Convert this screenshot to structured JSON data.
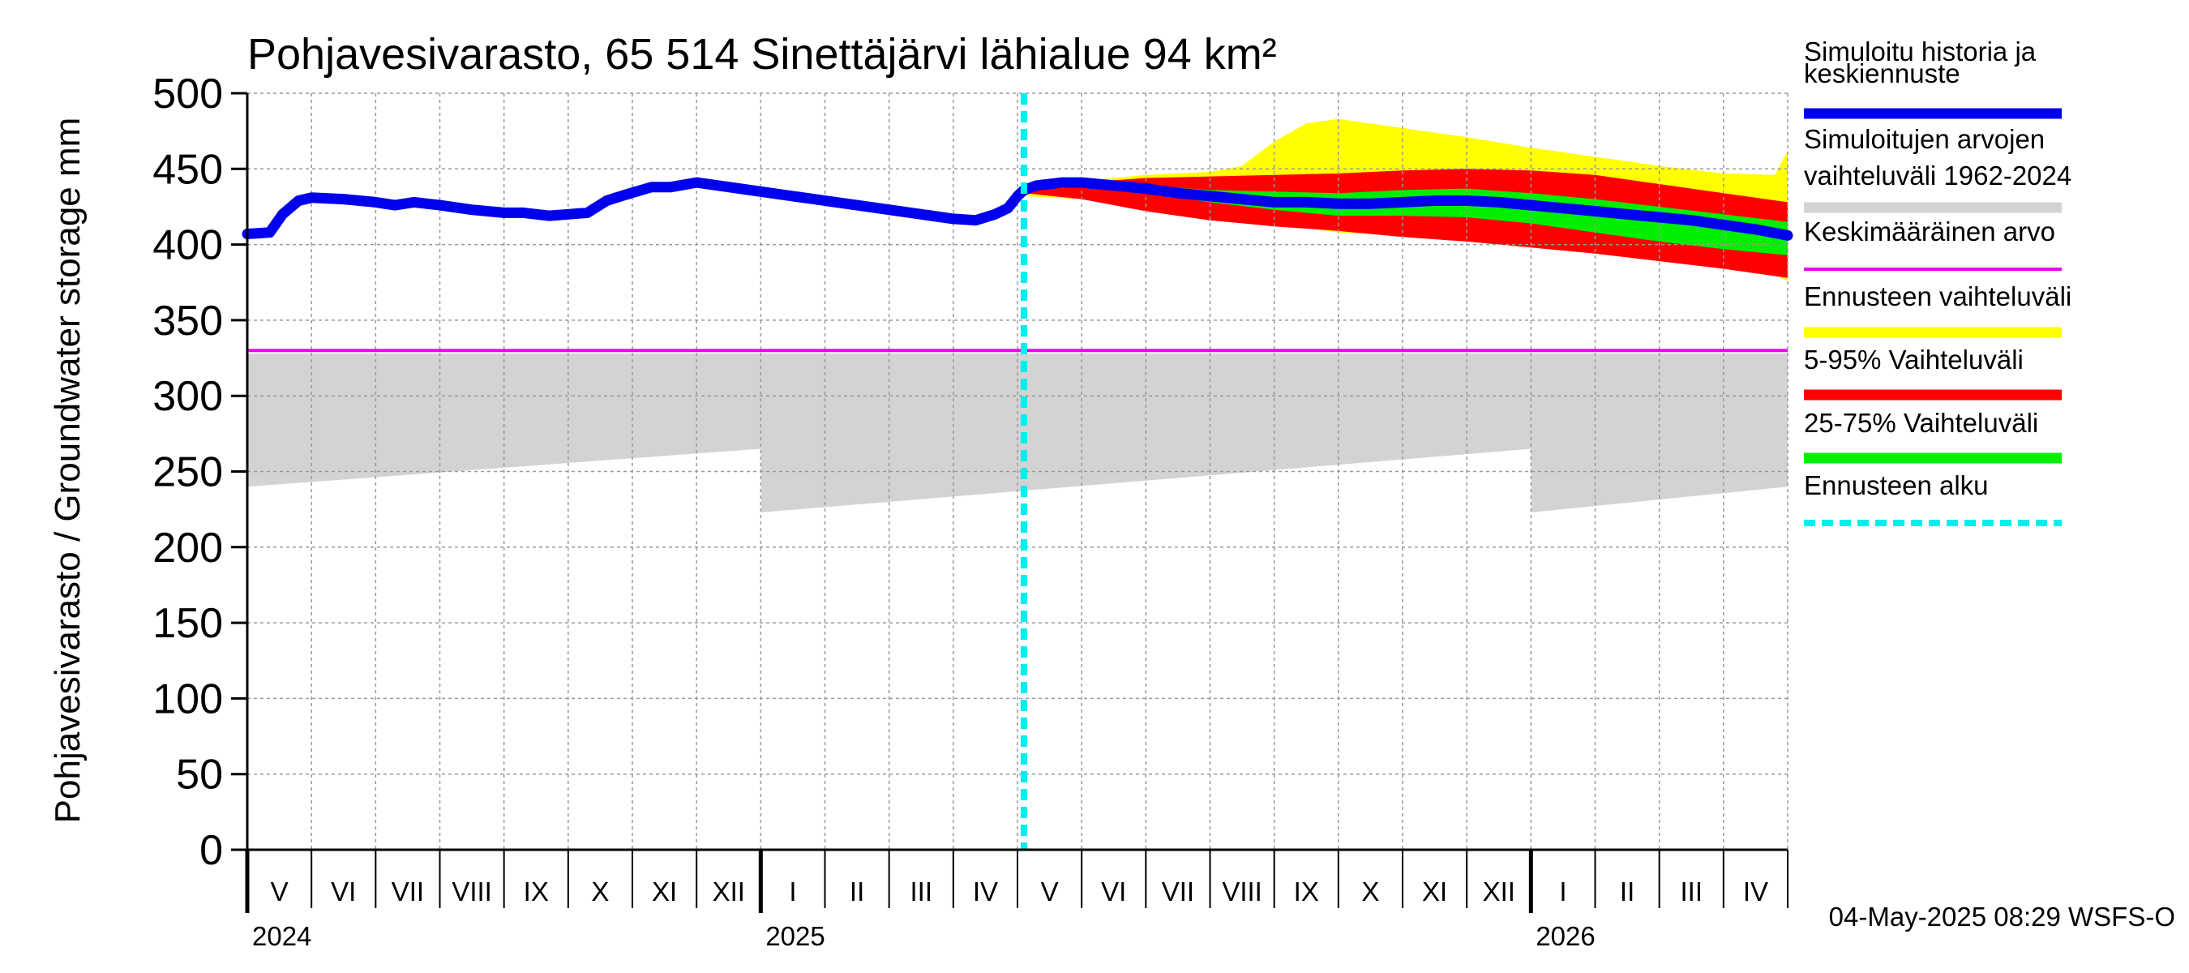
{
  "chart_data": {
    "type": "area",
    "title": "Pohjavesivarasto, 65 514 Sinettäjärvi lähialue 94 km²",
    "ylabel": "Pohjavesivarasto / Groundwater storage   mm",
    "ylim": [
      0,
      500
    ],
    "yticks": [
      0,
      50,
      100,
      150,
      200,
      250,
      300,
      350,
      400,
      450,
      500
    ],
    "x_range_months": [
      0,
      24
    ],
    "x_start": "2024-05-01",
    "forecast_start_month": 12.1,
    "mean_value": 330,
    "month_labels": [
      "V",
      "VI",
      "VII",
      "VIII",
      "IX",
      "X",
      "XI",
      "XII",
      "I",
      "II",
      "III",
      "IV",
      "V",
      "VI",
      "VII",
      "VIII",
      "IX",
      "X",
      "XI",
      "XII",
      "I",
      "II",
      "III",
      "IV"
    ],
    "year_labels": [
      {
        "label": "2024",
        "month": 0
      },
      {
        "label": "2025",
        "month": 8
      },
      {
        "label": "2026",
        "month": 20
      }
    ],
    "series": [
      {
        "name": "Simuloitu historia ja keskiennuste",
        "color": "#0000ee",
        "x": [
          0,
          0.35,
          0.55,
          0.8,
          1,
          1.5,
          2,
          2.3,
          2.6,
          3,
          3.5,
          4,
          4.3,
          4.7,
          5,
          5.3,
          5.6,
          5.9,
          6.3,
          6.6,
          7,
          7.5,
          8,
          8.5,
          9,
          9.5,
          10,
          10.5,
          11,
          11.35,
          11.65,
          11.85,
          12,
          12.1,
          12.3,
          12.7,
          13,
          13.5,
          14,
          14.5,
          15,
          15.5,
          16,
          16.5,
          17,
          17.5,
          18,
          18.5,
          19,
          19.5,
          20,
          20.5,
          21,
          21.5,
          22,
          22.5,
          23,
          23.5,
          24
        ],
        "values": [
          407,
          408,
          420,
          429,
          431,
          430,
          428,
          426,
          428,
          426,
          423,
          421,
          421,
          419,
          420,
          421,
          429,
          433,
          438,
          438,
          441,
          438,
          435,
          432,
          429,
          426,
          423,
          420,
          417,
          416,
          420,
          424,
          432,
          436,
          439,
          441,
          441,
          439,
          437,
          434,
          432,
          430,
          428,
          428,
          427,
          427,
          428,
          429,
          429,
          428,
          426,
          424,
          422,
          420,
          418,
          416,
          413,
          410,
          406
        ]
      }
    ],
    "bands": {
      "historical": {
        "name": "Simuloitujen arvojen vaihteluväli 1962-2024",
        "color": "#d3d3d3",
        "x": [
          0,
          8,
          8.01,
          20,
          20.01,
          24
        ],
        "upper": [
          328,
          328,
          328,
          328,
          328,
          328
        ],
        "lower": [
          240,
          265,
          223,
          265,
          223,
          240
        ]
      },
      "forecast_range": {
        "name": "Ennusteen vaihteluväli",
        "color": "#ffff00",
        "x": [
          12.1,
          13,
          14,
          15,
          15.5,
          16,
          16.5,
          17,
          18,
          19,
          20,
          21,
          22,
          23,
          23.8,
          24
        ],
        "upper": [
          438,
          442,
          446,
          448,
          452,
          468,
          480,
          483,
          477,
          471,
          464,
          458,
          452,
          447,
          446,
          462
        ],
        "lower": [
          432,
          430,
          425,
          419,
          416,
          413,
          411,
          408,
          406,
          403,
          400,
          396,
          390,
          385,
          380,
          376
        ]
      },
      "p5_95": {
        "name": "5-95% Vaihteluväli",
        "color": "#ff0000",
        "x": [
          12.1,
          13,
          14,
          15,
          16,
          17,
          18,
          19,
          20,
          21,
          22,
          23,
          24
        ],
        "upper": [
          437,
          441,
          444,
          445,
          446,
          447,
          449,
          450,
          449,
          446,
          440,
          434,
          428
        ],
        "lower": [
          434,
          430,
          422,
          416,
          412,
          409,
          405,
          402,
          398,
          394,
          389,
          384,
          378
        ]
      },
      "p25_75": {
        "name": "25-75% Vaihteluväli",
        "color": "#00ee00",
        "x": [
          12.1,
          13,
          14,
          15,
          16,
          17,
          18,
          19,
          20,
          21,
          22,
          23,
          24
        ],
        "upper": [
          438,
          440,
          439,
          436,
          435,
          434,
          436,
          437,
          434,
          430,
          425,
          420,
          415
        ],
        "lower": [
          436,
          438,
          434,
          428,
          423,
          419,
          419,
          418,
          414,
          408,
          402,
          397,
          393
        ]
      }
    },
    "legend": [
      {
        "label": "Simuloitu historia ja keskiennuste",
        "color": "#0000ee",
        "style": "line"
      },
      {
        "label": "Simuloitujen arvojen vaihteluväli 1962-2024",
        "color": "#d3d3d3",
        "style": "band"
      },
      {
        "label": "Keskimääräinen arvo",
        "color": "#ee00ee",
        "style": "thin"
      },
      {
        "label": "Ennusteen vaihteluväli",
        "color": "#ffff00",
        "style": "band"
      },
      {
        "label": "5-95% Vaihteluväli",
        "color": "#ff0000",
        "style": "band"
      },
      {
        "label": "25-75% Vaihteluväli",
        "color": "#00ee00",
        "style": "band"
      },
      {
        "label": "Ennusteen alku",
        "color": "#00eeee",
        "style": "dashed"
      }
    ],
    "colors": {
      "mean_line": "#ee00ee",
      "forecast_start": "#00eeee",
      "grid": "#999999"
    }
  },
  "footer": {
    "timestamp": "04-May-2025 08:29 WSFS-O"
  }
}
